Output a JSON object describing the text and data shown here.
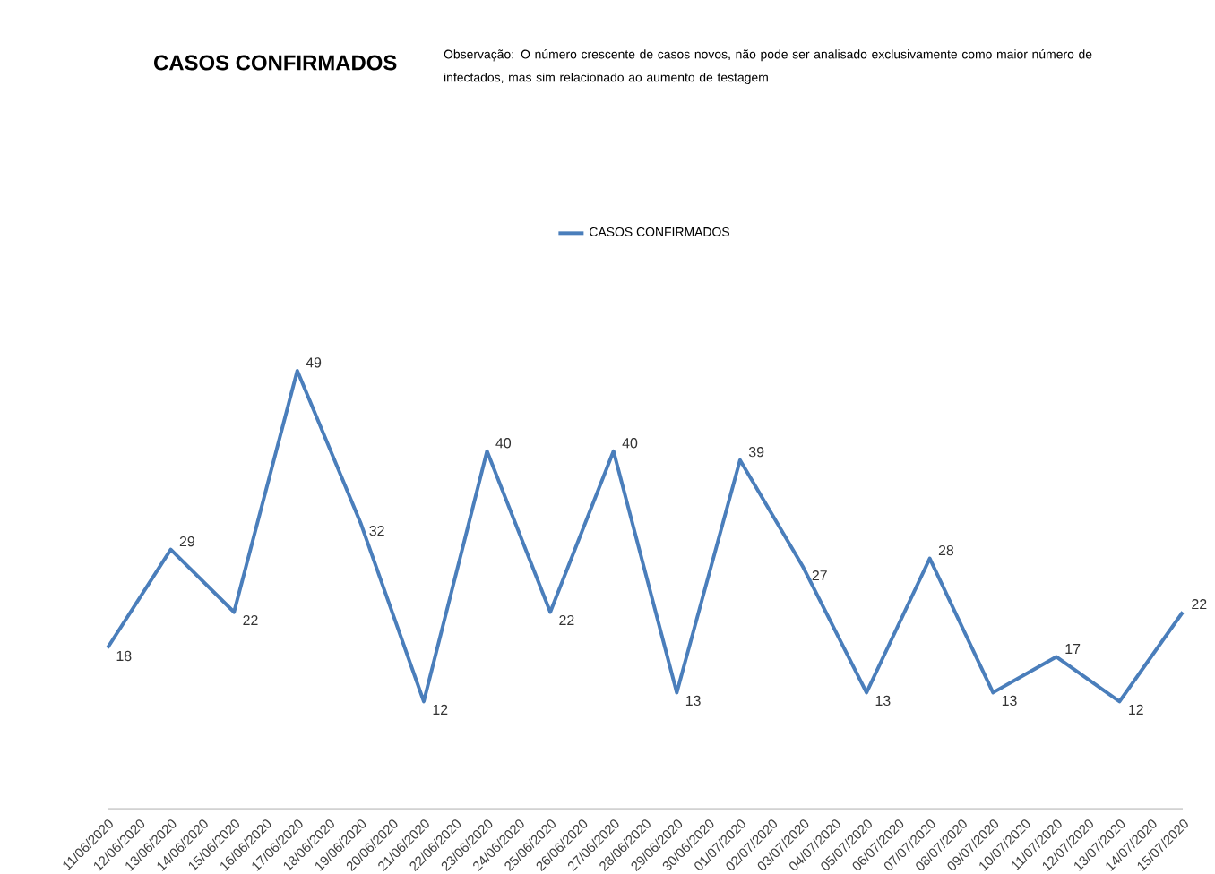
{
  "chart_data": {
    "type": "line",
    "title": "CASOS CONFIRMADOS",
    "annotations": [
      "Observação: O número crescente de casos novos, não pode ser analisado exclusivamente como maior número de infectados, mas sim relacionado ao aumento de testagem"
    ],
    "x": [
      "2020-06-11",
      "2020-06-13",
      "2020-06-15",
      "2020-06-17",
      "2020-06-19",
      "2020-06-21",
      "2020-06-23",
      "2020-06-25",
      "2020-06-27",
      "2020-06-29",
      "2020-07-01",
      "2020-07-03",
      "2020-07-05",
      "2020-07-07",
      "2020-07-09",
      "2020-07-11",
      "2020-07-13",
      "2020-07-15"
    ],
    "series": [
      {
        "name": "CASOS CONFIRMADOS",
        "color": "#4a7ebb",
        "values": [
          18,
          29,
          22,
          49,
          32,
          12,
          40,
          22,
          40,
          13,
          39,
          27,
          13,
          28,
          13,
          17,
          12,
          22
        ]
      }
    ],
    "xlim": [
      "2020-06-11",
      "2020-07-15"
    ],
    "xticks": [
      {
        "value": "2020-06-11",
        "label": "11/06/2020"
      },
      {
        "value": "2020-06-12",
        "label": "12/06/2020"
      },
      {
        "value": "2020-06-13",
        "label": "13/06/2020"
      },
      {
        "value": "2020-06-14",
        "label": "14/06/2020"
      },
      {
        "value": "2020-06-15",
        "label": "15/06/2020"
      },
      {
        "value": "2020-06-16",
        "label": "16/06/2020"
      },
      {
        "value": "2020-06-17",
        "label": "17/06/2020"
      },
      {
        "value": "2020-06-18",
        "label": "18/06/2020"
      },
      {
        "value": "2020-06-19",
        "label": "19/06/2020"
      },
      {
        "value": "2020-06-20",
        "label": "20/06/2020"
      },
      {
        "value": "2020-06-21",
        "label": "21/06/2020"
      },
      {
        "value": "2020-06-22",
        "label": "22/06/2020"
      },
      {
        "value": "2020-06-23",
        "label": "23/06/2020"
      },
      {
        "value": "2020-06-24",
        "label": "24/06/2020"
      },
      {
        "value": "2020-06-25",
        "label": "25/06/2020"
      },
      {
        "value": "2020-06-26",
        "label": "26/06/2020"
      },
      {
        "value": "2020-06-27",
        "label": "27/06/2020"
      },
      {
        "value": "2020-06-28",
        "label": "28/06/2020"
      },
      {
        "value": "2020-06-29",
        "label": "29/06/2020"
      },
      {
        "value": "2020-06-30",
        "label": "30/06/2020"
      },
      {
        "value": "2020-07-01",
        "label": "01/07/2020"
      },
      {
        "value": "2020-07-02",
        "label": "02/07/2020"
      },
      {
        "value": "2020-07-03",
        "label": "03/07/2020"
      },
      {
        "value": "2020-07-04",
        "label": "04/07/2020"
      },
      {
        "value": "2020-07-05",
        "label": "05/07/2020"
      },
      {
        "value": "2020-07-06",
        "label": "06/07/2020"
      },
      {
        "value": "2020-07-07",
        "label": "07/07/2020"
      },
      {
        "value": "2020-07-08",
        "label": "08/07/2020"
      },
      {
        "value": "2020-07-09",
        "label": "09/07/2020"
      },
      {
        "value": "2020-07-10",
        "label": "10/07/2020"
      },
      {
        "value": "2020-07-11",
        "label": "11/07/2020"
      },
      {
        "value": "2020-07-12",
        "label": "12/07/2020"
      },
      {
        "value": "2020-07-13",
        "label": "13/07/2020"
      },
      {
        "value": "2020-07-14",
        "label": "14/07/2020"
      },
      {
        "value": "2020-07-15",
        "label": "15/07/2020"
      }
    ],
    "tick_labels": "x",
    "data_labels": true,
    "legend": "top",
    "marker": "none",
    "line_style": "solid",
    "grid": false
  }
}
